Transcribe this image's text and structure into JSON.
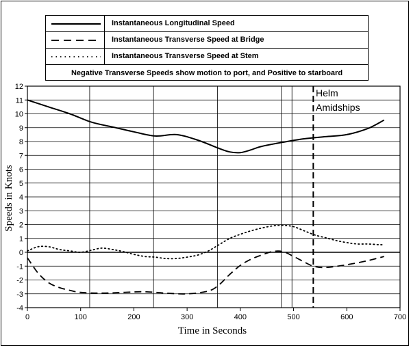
{
  "chart_data": {
    "type": "line",
    "xlabel": "Time in Seconds",
    "ylabel": "Speeds in Knots",
    "xlim": [
      0,
      700
    ],
    "ylim": [
      -4,
      12
    ],
    "x_ticks": [
      0,
      100,
      200,
      300,
      400,
      500,
      600,
      700
    ],
    "y_ticks": [
      -4,
      -3,
      -2,
      -1,
      0,
      1,
      2,
      3,
      4,
      5,
      6,
      7,
      8,
      9,
      10,
      11,
      12
    ],
    "grid": true,
    "vertical_markers": [
      117,
      237,
      357,
      477,
      497,
      537
    ],
    "legend_position": "top",
    "legend_note": "Negative Transverse Speeds show motion to port, and Positive to starboard",
    "annotations": [
      {
        "text": "Helm",
        "x": 537,
        "y": 11.7
      },
      {
        "text": "Amidships",
        "x": 537,
        "y": 10.7
      }
    ],
    "series": [
      {
        "name": "Instantaneous Longitudinal Speed",
        "style": "solid",
        "x": [
          0,
          40,
          80,
          120,
          160,
          200,
          240,
          280,
          320,
          360,
          380,
          400,
          420,
          440,
          480,
          520,
          560,
          600,
          640,
          670
        ],
        "y": [
          11.0,
          10.5,
          10.0,
          9.4,
          9.05,
          8.7,
          8.4,
          8.5,
          8.1,
          7.5,
          7.25,
          7.2,
          7.4,
          7.65,
          7.95,
          8.2,
          8.35,
          8.5,
          8.95,
          9.55
        ]
      },
      {
        "name": "Instantaneous Transverse Speed at Bridge",
        "style": "dashed",
        "x": [
          0,
          20,
          40,
          60,
          80,
          100,
          140,
          180,
          220,
          260,
          300,
          340,
          360,
          380,
          400,
          420,
          440,
          460,
          480,
          500,
          520,
          537,
          560,
          600,
          640,
          670
        ],
        "y": [
          -0.4,
          -1.5,
          -2.2,
          -2.55,
          -2.75,
          -2.9,
          -2.95,
          -2.9,
          -2.85,
          -2.95,
          -3.0,
          -2.8,
          -2.35,
          -1.6,
          -0.95,
          -0.5,
          -0.2,
          0.05,
          0.05,
          -0.3,
          -0.7,
          -1.0,
          -1.1,
          -0.9,
          -0.6,
          -0.3
        ]
      },
      {
        "name": "Instantaneous Transverse Speed at Stem",
        "style": "dotted",
        "x": [
          0,
          20,
          40,
          60,
          80,
          100,
          120,
          140,
          160,
          180,
          200,
          220,
          240,
          260,
          280,
          300,
          320,
          340,
          360,
          380,
          400,
          420,
          440,
          460,
          480,
          500,
          520,
          540,
          560,
          580,
          600,
          620,
          640,
          660,
          670
        ],
        "y": [
          0.1,
          0.4,
          0.4,
          0.2,
          0.1,
          0.0,
          0.15,
          0.3,
          0.2,
          0.05,
          -0.15,
          -0.3,
          -0.35,
          -0.45,
          -0.45,
          -0.35,
          -0.2,
          0.1,
          0.55,
          1.0,
          1.3,
          1.55,
          1.75,
          1.9,
          1.95,
          1.85,
          1.55,
          1.25,
          1.05,
          0.85,
          0.7,
          0.6,
          0.6,
          0.55,
          0.55
        ]
      }
    ]
  }
}
